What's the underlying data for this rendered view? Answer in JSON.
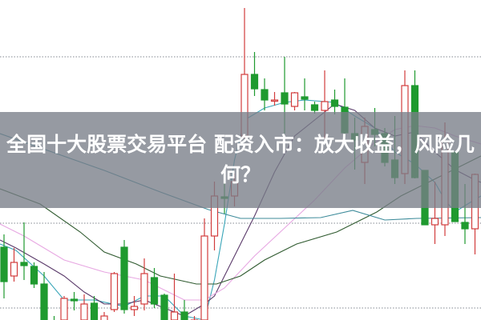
{
  "headline": "全国十大股票交易平台 配资入市：放大收益，风险几何？",
  "colors": {
    "up": "#d23c3c",
    "down": "#1f9a2f",
    "ma5": "#3aa6b9",
    "ma10": "#5a3a6a",
    "ma20": "#e7a7e2",
    "ma30": "#2f5a2f",
    "ma60": "#3d8b9a",
    "grid": "#9aa0a6",
    "banner": "#787e88"
  },
  "chart_data": {
    "type": "candlestick",
    "title": "",
    "xlabel": "",
    "ylabel": "",
    "ylim": [
      0,
      400
    ],
    "grid_levels": [
      329,
      121,
      15
    ],
    "grid": "horizontal dotted",
    "candles": [
      {
        "o": 91,
        "c": 48,
        "h": 107,
        "l": 27
      },
      {
        "o": 55,
        "c": 72,
        "h": 90,
        "l": 48
      },
      {
        "o": 72,
        "c": 68,
        "h": 122,
        "l": 50
      },
      {
        "o": 67,
        "c": 45,
        "h": 72,
        "l": 40
      },
      {
        "o": 45,
        "c": 0,
        "h": 60,
        "l": -10
      },
      {
        "o": -5,
        "c": -20,
        "h": 5,
        "l": -30
      },
      {
        "o": 0,
        "c": 27,
        "h": 30,
        "l": -10
      },
      {
        "o": 26,
        "c": 24,
        "h": 35,
        "l": 12
      },
      {
        "o": 0,
        "c": 20,
        "h": 32,
        "l": -10
      },
      {
        "o": 21,
        "c": 0,
        "h": 30,
        "l": -10
      },
      {
        "o": -5,
        "c": 5,
        "h": 10,
        "l": -15
      },
      {
        "o": 13,
        "c": 58,
        "h": 60,
        "l": 10
      },
      {
        "o": 91,
        "c": 13,
        "h": 100,
        "l": 8
      },
      {
        "o": 13,
        "c": 17,
        "h": 30,
        "l": 5
      },
      {
        "o": 20,
        "c": 58,
        "h": 77,
        "l": 12
      },
      {
        "o": 53,
        "c": 20,
        "h": 65,
        "l": 15
      },
      {
        "o": 31,
        "c": 0,
        "h": 33,
        "l": -10
      },
      {
        "o": 0,
        "c": 10,
        "h": 58,
        "l": -10
      },
      {
        "o": 10,
        "c": 0,
        "h": 25,
        "l": -10
      },
      {
        "o": -5,
        "c": 0,
        "h": 5,
        "l": -20
      },
      {
        "o": 0,
        "c": 105,
        "h": 127,
        "l": -10
      },
      {
        "o": 105,
        "c": 155,
        "h": 173,
        "l": 87
      },
      {
        "o": 154,
        "c": 152,
        "h": 173,
        "l": 133
      },
      {
        "o": 155,
        "c": 173,
        "h": 183,
        "l": 142
      },
      {
        "o": 230,
        "c": 307,
        "h": 390,
        "l": 227
      },
      {
        "o": 307,
        "c": 289,
        "h": 335,
        "l": 280
      },
      {
        "o": 288,
        "c": 275,
        "h": 302,
        "l": 262
      },
      {
        "o": 274,
        "c": 275,
        "h": 285,
        "l": 268
      },
      {
        "o": 284,
        "c": 270,
        "h": 329,
        "l": 233
      },
      {
        "o": 267,
        "c": 284,
        "h": 285,
        "l": 262
      },
      {
        "o": 279,
        "c": 276,
        "h": 302,
        "l": 262
      },
      {
        "o": 269,
        "c": 262,
        "h": 273,
        "l": 258
      },
      {
        "o": 262,
        "c": 273,
        "h": 312,
        "l": 227
      },
      {
        "o": 275,
        "c": 267,
        "h": 288,
        "l": 257
      },
      {
        "o": 266,
        "c": 234,
        "h": 302,
        "l": 233
      },
      {
        "o": 233,
        "c": 225,
        "h": 253,
        "l": 188
      },
      {
        "o": 197,
        "c": 242,
        "h": 253,
        "l": 170
      },
      {
        "o": 238,
        "c": 232,
        "h": 265,
        "l": 217
      },
      {
        "o": 233,
        "c": 197,
        "h": 240,
        "l": 192
      },
      {
        "o": 200,
        "c": 178,
        "h": 255,
        "l": 170
      },
      {
        "o": 183,
        "c": 293,
        "h": 312,
        "l": 170
      },
      {
        "o": 293,
        "c": 178,
        "h": 312,
        "l": 177
      },
      {
        "o": 187,
        "c": 119,
        "h": 187,
        "l": 119
      },
      {
        "o": 119,
        "c": 127,
        "h": 173,
        "l": 95
      },
      {
        "o": 119,
        "c": 223,
        "h": 247,
        "l": 105
      },
      {
        "o": 210,
        "c": 123,
        "h": 210,
        "l": 123
      },
      {
        "o": 122,
        "c": 114,
        "h": 170,
        "l": 95
      },
      {
        "o": 114,
        "c": 182,
        "h": 183,
        "l": 82
      }
    ],
    "moving_averages": [
      {
        "key": "ma5",
        "points": [
          [
            -0.4,
            95
          ],
          [
            1.2,
            87
          ],
          [
            4,
            55
          ],
          [
            6,
            25
          ],
          [
            9,
            25
          ],
          [
            12,
            17
          ],
          [
            14,
            30
          ],
          [
            16,
            30
          ],
          [
            18,
            5
          ],
          [
            20,
            0
          ],
          [
            21,
            50
          ],
          [
            22,
            120
          ],
          [
            23,
            200
          ],
          [
            24,
            250
          ],
          [
            26,
            265
          ],
          [
            28,
            272
          ],
          [
            30,
            275
          ],
          [
            32,
            273
          ],
          [
            33,
            272
          ],
          [
            35,
            255
          ],
          [
            37,
            240
          ],
          [
            39,
            210
          ],
          [
            41,
            195
          ],
          [
            43,
            172
          ],
          [
            44,
            150
          ],
          [
            45,
            135
          ],
          [
            46,
            143
          ],
          [
            47.6,
            155
          ]
        ]
      },
      {
        "key": "ma10",
        "points": [
          [
            -0.4,
            100
          ],
          [
            1.2,
            90
          ],
          [
            4,
            70
          ],
          [
            6,
            55
          ],
          [
            8,
            35
          ],
          [
            10,
            20
          ],
          [
            12,
            20
          ],
          [
            14,
            25
          ],
          [
            16,
            15
          ],
          [
            18,
            5
          ],
          [
            20,
            20
          ],
          [
            21,
            30
          ],
          [
            23,
            80
          ],
          [
            25,
            130
          ],
          [
            27,
            185
          ],
          [
            29,
            230
          ],
          [
            31,
            250
          ],
          [
            33,
            270
          ],
          [
            35,
            262
          ],
          [
            37,
            240
          ],
          [
            39,
            230
          ],
          [
            41,
            235
          ],
          [
            43,
            210
          ],
          [
            45,
            188
          ],
          [
            47,
            175
          ],
          [
            47.6,
            172
          ]
        ]
      },
      {
        "key": "ma20",
        "points": [
          [
            -0.4,
            120
          ],
          [
            2,
            105
          ],
          [
            6,
            75
          ],
          [
            10,
            60
          ],
          [
            14,
            50
          ],
          [
            18,
            25
          ],
          [
            20,
            25
          ],
          [
            22,
            40
          ],
          [
            25,
            80
          ],
          [
            28,
            115
          ],
          [
            31,
            150
          ],
          [
            34,
            190
          ],
          [
            37,
            222
          ],
          [
            39,
            238
          ],
          [
            41,
            243
          ],
          [
            43,
            240
          ],
          [
            45,
            230
          ],
          [
            47.6,
            220
          ]
        ]
      },
      {
        "key": "ma30",
        "points": [
          [
            -0.4,
            164
          ],
          [
            3.6,
            145
          ],
          [
            7.6,
            110
          ],
          [
            10,
            85
          ],
          [
            13.2,
            70
          ],
          [
            15.6,
            55
          ],
          [
            19.2,
            45
          ],
          [
            21.2,
            45
          ],
          [
            23.6,
            55
          ],
          [
            26,
            75
          ],
          [
            29.2,
            95
          ],
          [
            33.2,
            110
          ],
          [
            37.2,
            135
          ],
          [
            39.6,
            155
          ],
          [
            42.8,
            175
          ],
          [
            47.6,
            205
          ]
        ]
      },
      {
        "key": "ma60",
        "points": [
          [
            -0.4,
            233
          ],
          [
            10,
            187
          ],
          [
            15.6,
            160
          ],
          [
            20.4,
            138
          ],
          [
            23.6,
            127
          ],
          [
            27.6,
            127
          ],
          [
            31.6,
            128
          ],
          [
            34.8,
            137
          ],
          [
            38,
            125
          ],
          [
            41.2,
            127
          ],
          [
            47.6,
            128
          ]
        ]
      }
    ]
  }
}
